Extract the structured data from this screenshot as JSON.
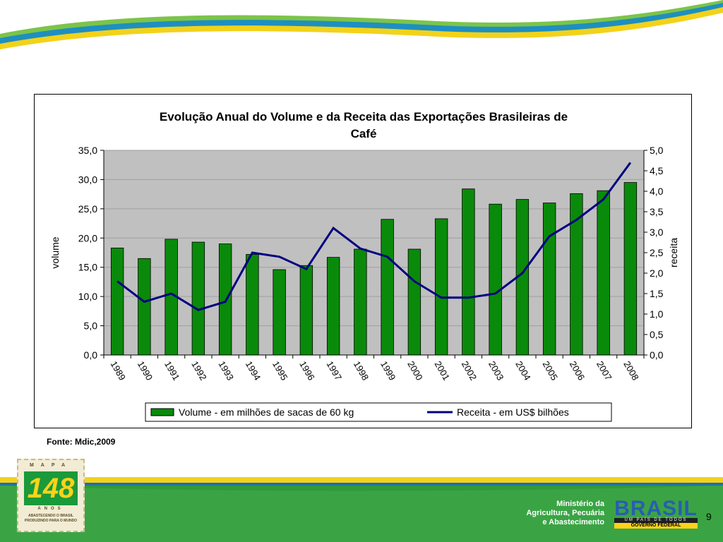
{
  "chart_data": {
    "type": "bar",
    "title": "Evolução Anual do Volume e da Receita das Exportações Brasileiras de Café",
    "title_lines": [
      "Evolução Anual do Volume e da Receita das Exportações Brasileiras de",
      "Café"
    ],
    "categories": [
      "1989",
      "1990",
      "1991",
      "1992",
      "1993",
      "1994",
      "1995",
      "1996",
      "1997",
      "1998",
      "1999",
      "2000",
      "2001",
      "2002",
      "2003",
      "2004",
      "2005",
      "2006",
      "2007",
      "2008"
    ],
    "series": [
      {
        "name": "Volume - em milhões de sacas de 60 kg",
        "type": "bar",
        "axis": "left",
        "color": "#0a8a0a",
        "values": [
          18.3,
          16.5,
          19.8,
          19.3,
          19.0,
          17.2,
          14.6,
          15.3,
          16.7,
          18.1,
          23.2,
          18.1,
          23.3,
          28.4,
          25.8,
          26.6,
          26.0,
          27.6,
          28.1,
          29.5
        ]
      },
      {
        "name": "Receita - em US$ bilhões",
        "type": "line",
        "axis": "right",
        "color": "#000080",
        "values": [
          1.8,
          1.3,
          1.5,
          1.1,
          1.3,
          2.5,
          2.4,
          2.1,
          3.1,
          2.6,
          2.4,
          1.8,
          1.4,
          1.4,
          1.5,
          2.0,
          2.9,
          3.3,
          3.8,
          4.7
        ]
      }
    ],
    "ylabel": "volume",
    "y2label": "receita",
    "ylim": [
      0,
      35
    ],
    "y2lim": [
      0,
      5
    ],
    "yticks": [
      "0,0",
      "5,0",
      "10,0",
      "15,0",
      "20,0",
      "25,0",
      "30,0",
      "35,0"
    ],
    "y2ticks": [
      "0,0",
      "0,5",
      "1,0",
      "1,5",
      "2,0",
      "2,5",
      "3,0",
      "3,5",
      "4,0",
      "4,5",
      "5,0"
    ],
    "grid": true,
    "plot_background": "#c0c0c0",
    "legend_position": "bottom"
  },
  "source_note": "Fonte: Mdic,2009",
  "footer": {
    "mapa_letters": "MAPA",
    "mapa_number": "148",
    "mapa_anos": "ANOS",
    "mapa_tagline": [
      "ABASTECENDO O BRASIL",
      "PRODUZINDO PARA O MUNDO"
    ],
    "ministry_lines": [
      "Ministério da",
      "Agricultura, Pecuária",
      "e Abastecimento"
    ],
    "brasil_word": "BRASIL",
    "brasil_tagline": "UM PAÍS DE TODOS",
    "brasil_gov": "GOVERNO FEDERAL",
    "page_number": "9"
  }
}
